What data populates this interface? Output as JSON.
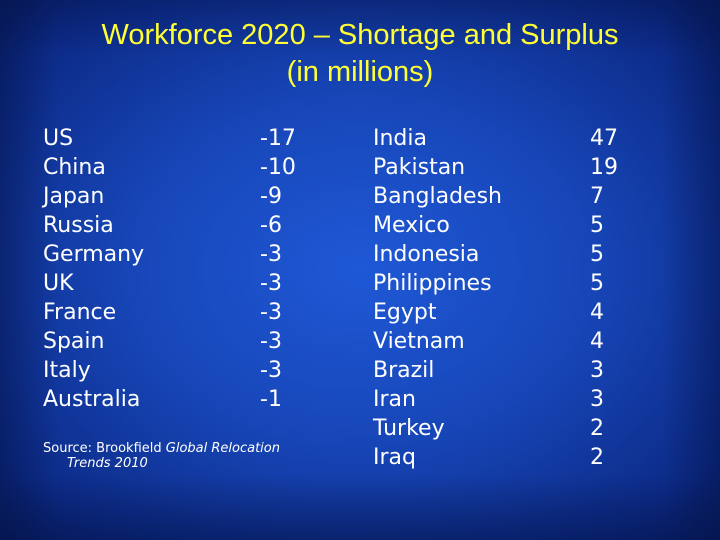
{
  "title": {
    "line1": "Workforce 2020 – Shortage and Surplus",
    "line2": "(in millions)"
  },
  "shortage": [
    {
      "country": "US",
      "value": "-17"
    },
    {
      "country": "China",
      "value": "-10"
    },
    {
      "country": "Japan",
      "value": "-9"
    },
    {
      "country": "Russia",
      "value": "-6"
    },
    {
      "country": "Germany",
      "value": "-3"
    },
    {
      "country": "UK",
      "value": "-3"
    },
    {
      "country": "France",
      "value": "-3"
    },
    {
      "country": "Spain",
      "value": "-3"
    },
    {
      "country": "Italy",
      "value": "-3"
    },
    {
      "country": "Australia",
      "value": "-1"
    }
  ],
  "surplus": [
    {
      "country": "India",
      "value": "47"
    },
    {
      "country": "Pakistan",
      "value": "19"
    },
    {
      "country": "Bangladesh",
      "value": "7"
    },
    {
      "country": "Mexico",
      "value": "5"
    },
    {
      "country": "Indonesia",
      "value": "5"
    },
    {
      "country": "Philippines",
      "value": "5"
    },
    {
      "country": "Egypt",
      "value": "4"
    },
    {
      "country": "Vietnam",
      "value": "4"
    },
    {
      "country": "Brazil",
      "value": "3"
    },
    {
      "country": "Iran",
      "value": "3"
    },
    {
      "country": "Turkey",
      "value": "2"
    },
    {
      "country": "Iraq",
      "value": "2"
    }
  ],
  "source": {
    "prefix": "Source: Brookfield ",
    "italic_line1": "Global Relocation",
    "italic_line2": "Trends 2010"
  },
  "colors": {
    "background": "#1746b8",
    "title": "#ffff33",
    "text": "#ffffff"
  }
}
